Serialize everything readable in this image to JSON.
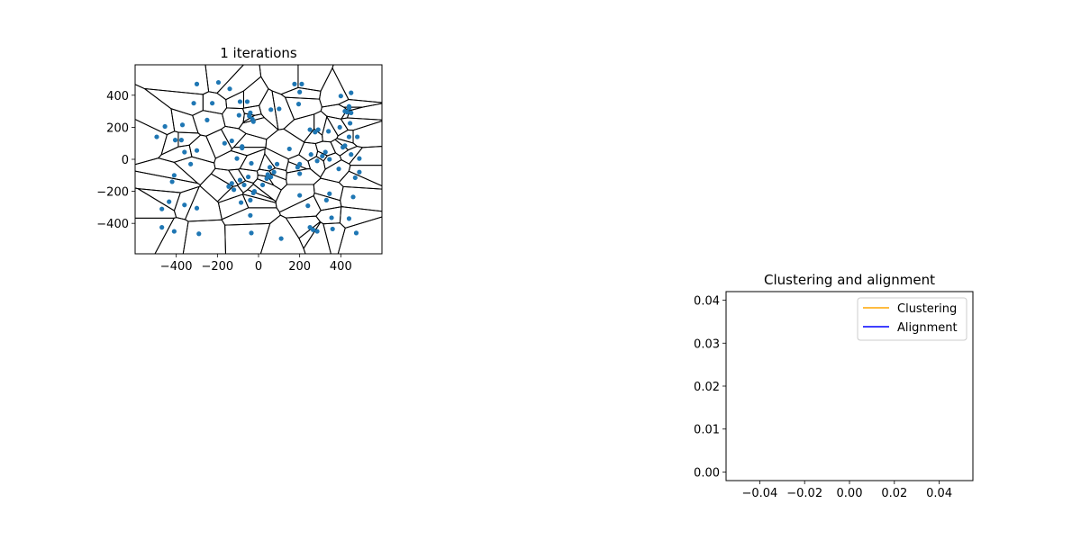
{
  "chart_data": [
    {
      "type": "scatter",
      "title": "1 iterations",
      "xlabel": "",
      "ylabel": "",
      "xlim": [
        -600,
        600
      ],
      "ylim": [
        -590,
        590
      ],
      "xticks": [
        -400,
        -200,
        0,
        200,
        400
      ],
      "yticks": [
        -400,
        -200,
        0,
        200,
        400
      ],
      "xtick_labels": [
        "−400",
        "−200",
        "0",
        "200",
        "400"
      ],
      "ytick_labels": [
        "−400",
        "−200",
        "0",
        "200",
        "400"
      ],
      "grid": false,
      "point_color": "#1f77b4",
      "overlay": "voronoi",
      "points": [
        [
          -495,
          140
        ],
        [
          -455,
          205
        ],
        [
          -405,
          120
        ],
        [
          -375,
          120
        ],
        [
          -370,
          215
        ],
        [
          -360,
          45
        ],
        [
          -330,
          -30
        ],
        [
          -300,
          55
        ],
        [
          -410,
          -100
        ],
        [
          -420,
          -140
        ],
        [
          -435,
          -265
        ],
        [
          -470,
          -310
        ],
        [
          -470,
          -425
        ],
        [
          -410,
          -450
        ],
        [
          -360,
          -285
        ],
        [
          -300,
          -305
        ],
        [
          -290,
          -465
        ],
        [
          -300,
          470
        ],
        [
          -315,
          350
        ],
        [
          -250,
          245
        ],
        [
          -225,
          350
        ],
        [
          -195,
          480
        ],
        [
          -140,
          440
        ],
        [
          -165,
          100
        ],
        [
          -130,
          115
        ],
        [
          -105,
          5
        ],
        [
          -80,
          80
        ],
        [
          -80,
          70
        ],
        [
          -95,
          275
        ],
        [
          -90,
          360
        ],
        [
          -55,
          360
        ],
        [
          -45,
          270
        ],
        [
          -40,
          290
        ],
        [
          -30,
          250
        ],
        [
          -25,
          235
        ],
        [
          -35,
          -25
        ],
        [
          -50,
          -110
        ],
        [
          -90,
          -130
        ],
        [
          -120,
          -190
        ],
        [
          -145,
          -170
        ],
        [
          -130,
          -150
        ],
        [
          -70,
          -160
        ],
        [
          -85,
          -270
        ],
        [
          -40,
          -255
        ],
        [
          -40,
          -350
        ],
        [
          -20,
          -200
        ],
        [
          -25,
          -210
        ],
        [
          -35,
          -460
        ],
        [
          20,
          -160
        ],
        [
          40,
          -120
        ],
        [
          45,
          -95
        ],
        [
          55,
          -50
        ],
        [
          60,
          -110
        ],
        [
          75,
          -80
        ],
        [
          60,
          310
        ],
        [
          100,
          315
        ],
        [
          150,
          65
        ],
        [
          90,
          -30
        ],
        [
          175,
          470
        ],
        [
          210,
          470
        ],
        [
          200,
          420
        ],
        [
          195,
          345
        ],
        [
          190,
          -50
        ],
        [
          200,
          -30
        ],
        [
          200,
          -90
        ],
        [
          200,
          -225
        ],
        [
          240,
          -290
        ],
        [
          250,
          -425
        ],
        [
          265,
          -440
        ],
        [
          285,
          -450
        ],
        [
          250,
          185
        ],
        [
          275,
          170
        ],
        [
          290,
          185
        ],
        [
          255,
          30
        ],
        [
          285,
          -10
        ],
        [
          310,
          20
        ],
        [
          325,
          45
        ],
        [
          345,
          0
        ],
        [
          340,
          175
        ],
        [
          345,
          -215
        ],
        [
          330,
          -255
        ],
        [
          355,
          -365
        ],
        [
          360,
          -435
        ],
        [
          390,
          -60
        ],
        [
          395,
          200
        ],
        [
          400,
          395
        ],
        [
          420,
          300
        ],
        [
          430,
          295
        ],
        [
          440,
          330
        ],
        [
          440,
          320
        ],
        [
          450,
          290
        ],
        [
          445,
          225
        ],
        [
          410,
          75
        ],
        [
          420,
          85
        ],
        [
          450,
          30
        ],
        [
          440,
          140
        ],
        [
          480,
          140
        ],
        [
          490,
          5
        ],
        [
          490,
          -80
        ],
        [
          470,
          -115
        ],
        [
          460,
          -235
        ],
        [
          440,
          -370
        ],
        [
          475,
          -460
        ],
        [
          110,
          -495
        ],
        [
          450,
          415
        ]
      ]
    },
    {
      "type": "line",
      "title": "Clustering and alignment",
      "xlabel": "",
      "ylabel": "",
      "xlim": [
        -0.055,
        0.055
      ],
      "ylim": [
        -0.002,
        0.042
      ],
      "xticks": [
        -0.04,
        -0.02,
        0.0,
        0.02,
        0.04
      ],
      "yticks": [
        0.0,
        0.01,
        0.02,
        0.03,
        0.04
      ],
      "xtick_labels": [
        "−0.04",
        "−0.02",
        "0.00",
        "0.02",
        "0.04"
      ],
      "ytick_labels": [
        "0.00",
        "0.01",
        "0.02",
        "0.03",
        "0.04"
      ],
      "grid": false,
      "legend_position": "top-right",
      "series": [
        {
          "name": "Clustering",
          "color": "#ffa500",
          "x": [],
          "y": []
        },
        {
          "name": "Alignment",
          "color": "#0000ff",
          "x": [],
          "y": []
        }
      ]
    }
  ]
}
